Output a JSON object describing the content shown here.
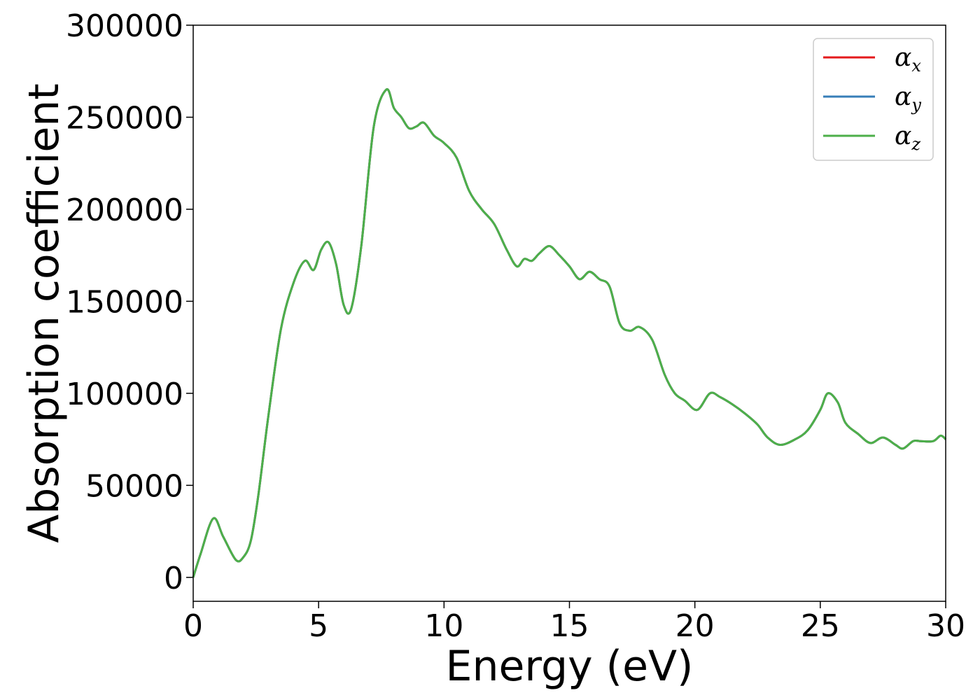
{
  "chart_data": {
    "type": "line",
    "title": "",
    "xlabel": "Energy (eV)",
    "ylabel": "Absorption coefficient",
    "xlim": [
      0,
      30
    ],
    "ylim": [
      -13000,
      300000
    ],
    "xticks": [
      0,
      5,
      10,
      15,
      20,
      25,
      30
    ],
    "yticks": [
      0,
      50000,
      100000,
      150000,
      200000,
      250000,
      300000
    ],
    "grid": false,
    "legend_position": "top-right",
    "series": [
      {
        "name": "α",
        "subscript": "x",
        "color": "#e41a1c"
      },
      {
        "name": "α",
        "subscript": "y",
        "color": "#377eb8"
      },
      {
        "name": "α",
        "subscript": "z",
        "color": "#4daf4a"
      }
    ],
    "x": [
      0,
      0.3,
      0.8,
      1.2,
      1.7,
      2.0,
      2.3,
      2.6,
      3.0,
      3.5,
      4.0,
      4.45,
      4.8,
      5.1,
      5.4,
      5.7,
      6.0,
      6.3,
      6.7,
      7.2,
      7.7,
      8.0,
      8.3,
      8.6,
      8.9,
      9.2,
      9.6,
      10.0,
      10.5,
      11.0,
      11.5,
      12.0,
      12.5,
      12.9,
      13.2,
      13.5,
      13.8,
      14.2,
      14.6,
      15.0,
      15.4,
      15.8,
      16.2,
      16.6,
      17.0,
      17.4,
      17.8,
      18.3,
      18.8,
      19.2,
      19.6,
      20.1,
      20.6,
      21.0,
      21.5,
      22.0,
      22.5,
      22.9,
      23.4,
      24.0,
      24.5,
      25.0,
      25.3,
      25.7,
      26.0,
      26.5,
      27.0,
      27.5,
      28.0,
      28.3,
      28.7,
      29.0,
      29.5,
      29.8,
      30.0
    ],
    "values": [
      0,
      13000,
      32000,
      22000,
      9500,
      11000,
      20000,
      45000,
      88000,
      135000,
      160000,
      172000,
      167000,
      178000,
      182000,
      170000,
      148000,
      146000,
      180000,
      245000,
      265000,
      255000,
      250000,
      244000,
      245000,
      247000,
      240000,
      236000,
      228000,
      210000,
      200000,
      192000,
      178000,
      169000,
      173000,
      172000,
      176000,
      180000,
      175000,
      169000,
      162000,
      166000,
      162000,
      158000,
      138000,
      134000,
      136000,
      129000,
      110000,
      100000,
      96000,
      91000,
      100000,
      98000,
      94000,
      89000,
      83000,
      76000,
      72000,
      75000,
      80000,
      91000,
      100000,
      95000,
      84000,
      78000,
      73000,
      76000,
      72000,
      70000,
      74000,
      74000,
      74000,
      77000,
      75000
    ]
  }
}
